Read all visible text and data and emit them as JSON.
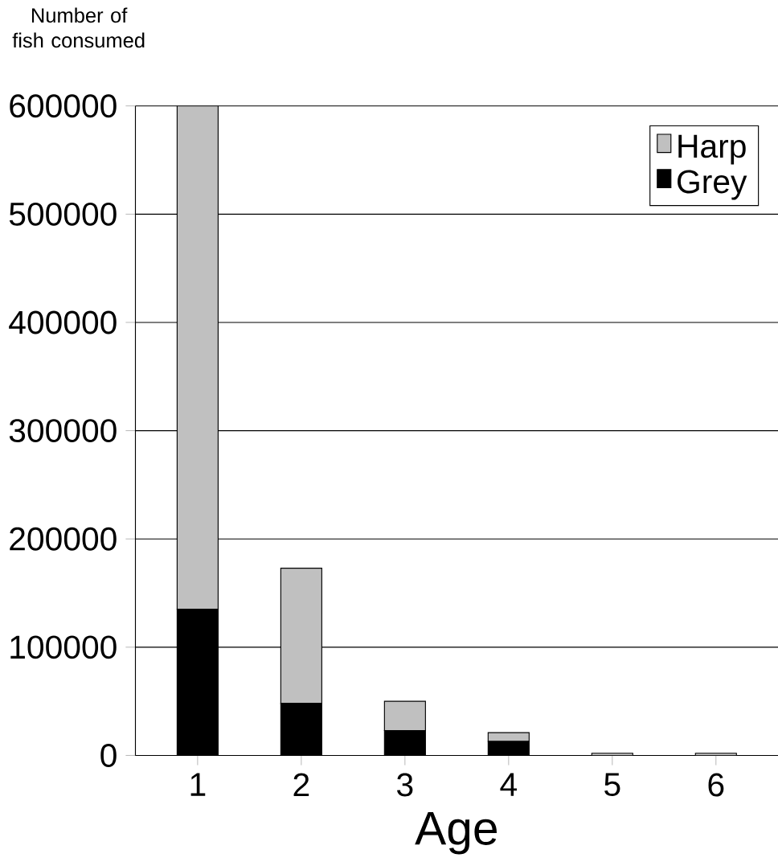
{
  "chart_data": {
    "type": "bar",
    "stacked": true,
    "ylabel": "Number of fish consumed",
    "xlabel": "Age",
    "categories": [
      "1",
      "2",
      "3",
      "4",
      "5",
      "6"
    ],
    "series": [
      {
        "name": "Grey",
        "color": "#000000",
        "values": [
          135000,
          48000,
          23000,
          13000,
          null,
          null
        ]
      },
      {
        "name": "Harp",
        "color": "#c0c0c0",
        "values": [
          465000,
          125000,
          27000,
          8000,
          2000,
          2000
        ]
      }
    ],
    "ylim": [
      0,
      600000
    ],
    "yticks": [
      0,
      100000,
      200000,
      300000,
      400000,
      500000,
      600000
    ],
    "grid": "y",
    "legend": "top right"
  }
}
